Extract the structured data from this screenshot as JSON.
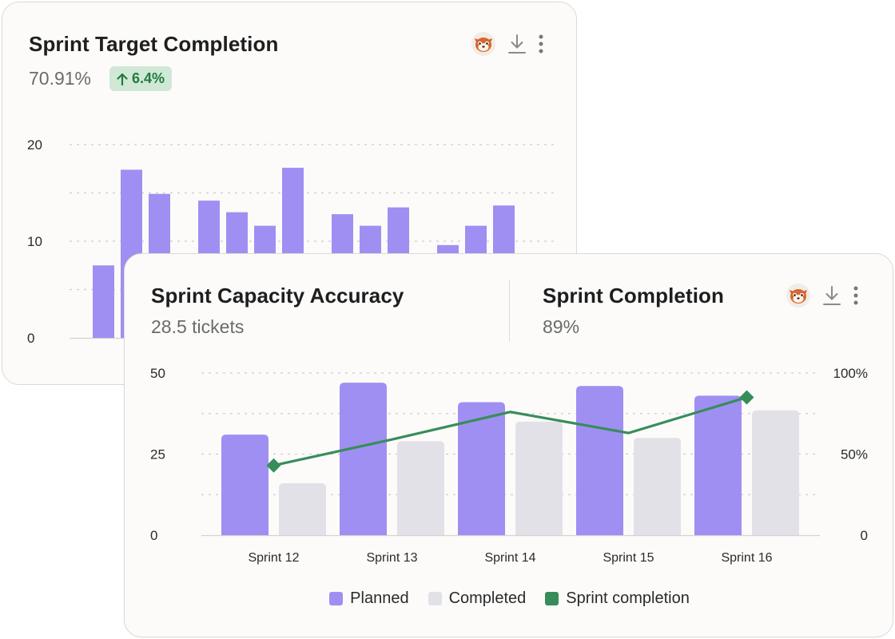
{
  "colors": {
    "planned": "#a08ff2",
    "completed": "#e3e1e8",
    "line": "#378d5a",
    "badge_bg": "#cfe9d6",
    "badge_text": "#237a42",
    "back_bar": "#a08ff2"
  },
  "back_card": {
    "title": "Sprint Target Completion",
    "value": "70.91%",
    "badge": "6.4%",
    "badge_icon": "arrow-up-icon",
    "icons": [
      "red-panda-avatar",
      "download-icon",
      "more-vertical-icon"
    ]
  },
  "front_card": {
    "left_title": "Sprint Capacity Accuracy",
    "left_value": "28.5 tickets",
    "right_title": "Sprint Completion",
    "right_value": "89%",
    "icons": [
      "red-panda-avatar",
      "download-icon",
      "more-vertical-icon"
    ]
  },
  "chart_data": [
    {
      "type": "bar",
      "title": "Sprint Target Completion",
      "ylim": [
        0,
        20
      ],
      "yticks": [
        "0",
        "10",
        "20"
      ],
      "grid": true,
      "groups": [
        [
          7.5,
          17.4,
          14.9
        ],
        [
          14.2,
          13.0,
          11.6,
          17.6
        ],
        [
          12.8,
          11.6,
          13.5
        ],
        [
          9.6,
          11.6,
          13.7
        ]
      ]
    },
    {
      "type": "bar",
      "title": "Sprint Capacity Accuracy / Sprint Completion",
      "categories": [
        "Sprint 12",
        "Sprint 13",
        "Sprint 14",
        "Sprint 15",
        "Sprint 16"
      ],
      "ylim": [
        0,
        50
      ],
      "yticks_left": [
        "0",
        "25",
        "50"
      ],
      "y2lim": [
        0,
        100
      ],
      "yticks_right": [
        "0",
        "50%",
        "100%"
      ],
      "grid": true,
      "series": [
        {
          "name": "Planned",
          "kind": "bar",
          "values": [
            31,
            47,
            41,
            46,
            43
          ]
        },
        {
          "name": "Completed",
          "kind": "bar",
          "values": [
            16,
            29,
            35,
            30,
            38.5
          ]
        },
        {
          "name": "Sprint completion",
          "kind": "line",
          "axis": "right",
          "values": [
            43,
            59,
            76,
            63,
            85
          ]
        }
      ],
      "legend": [
        "Planned",
        "Completed",
        "Sprint completion"
      ]
    }
  ]
}
